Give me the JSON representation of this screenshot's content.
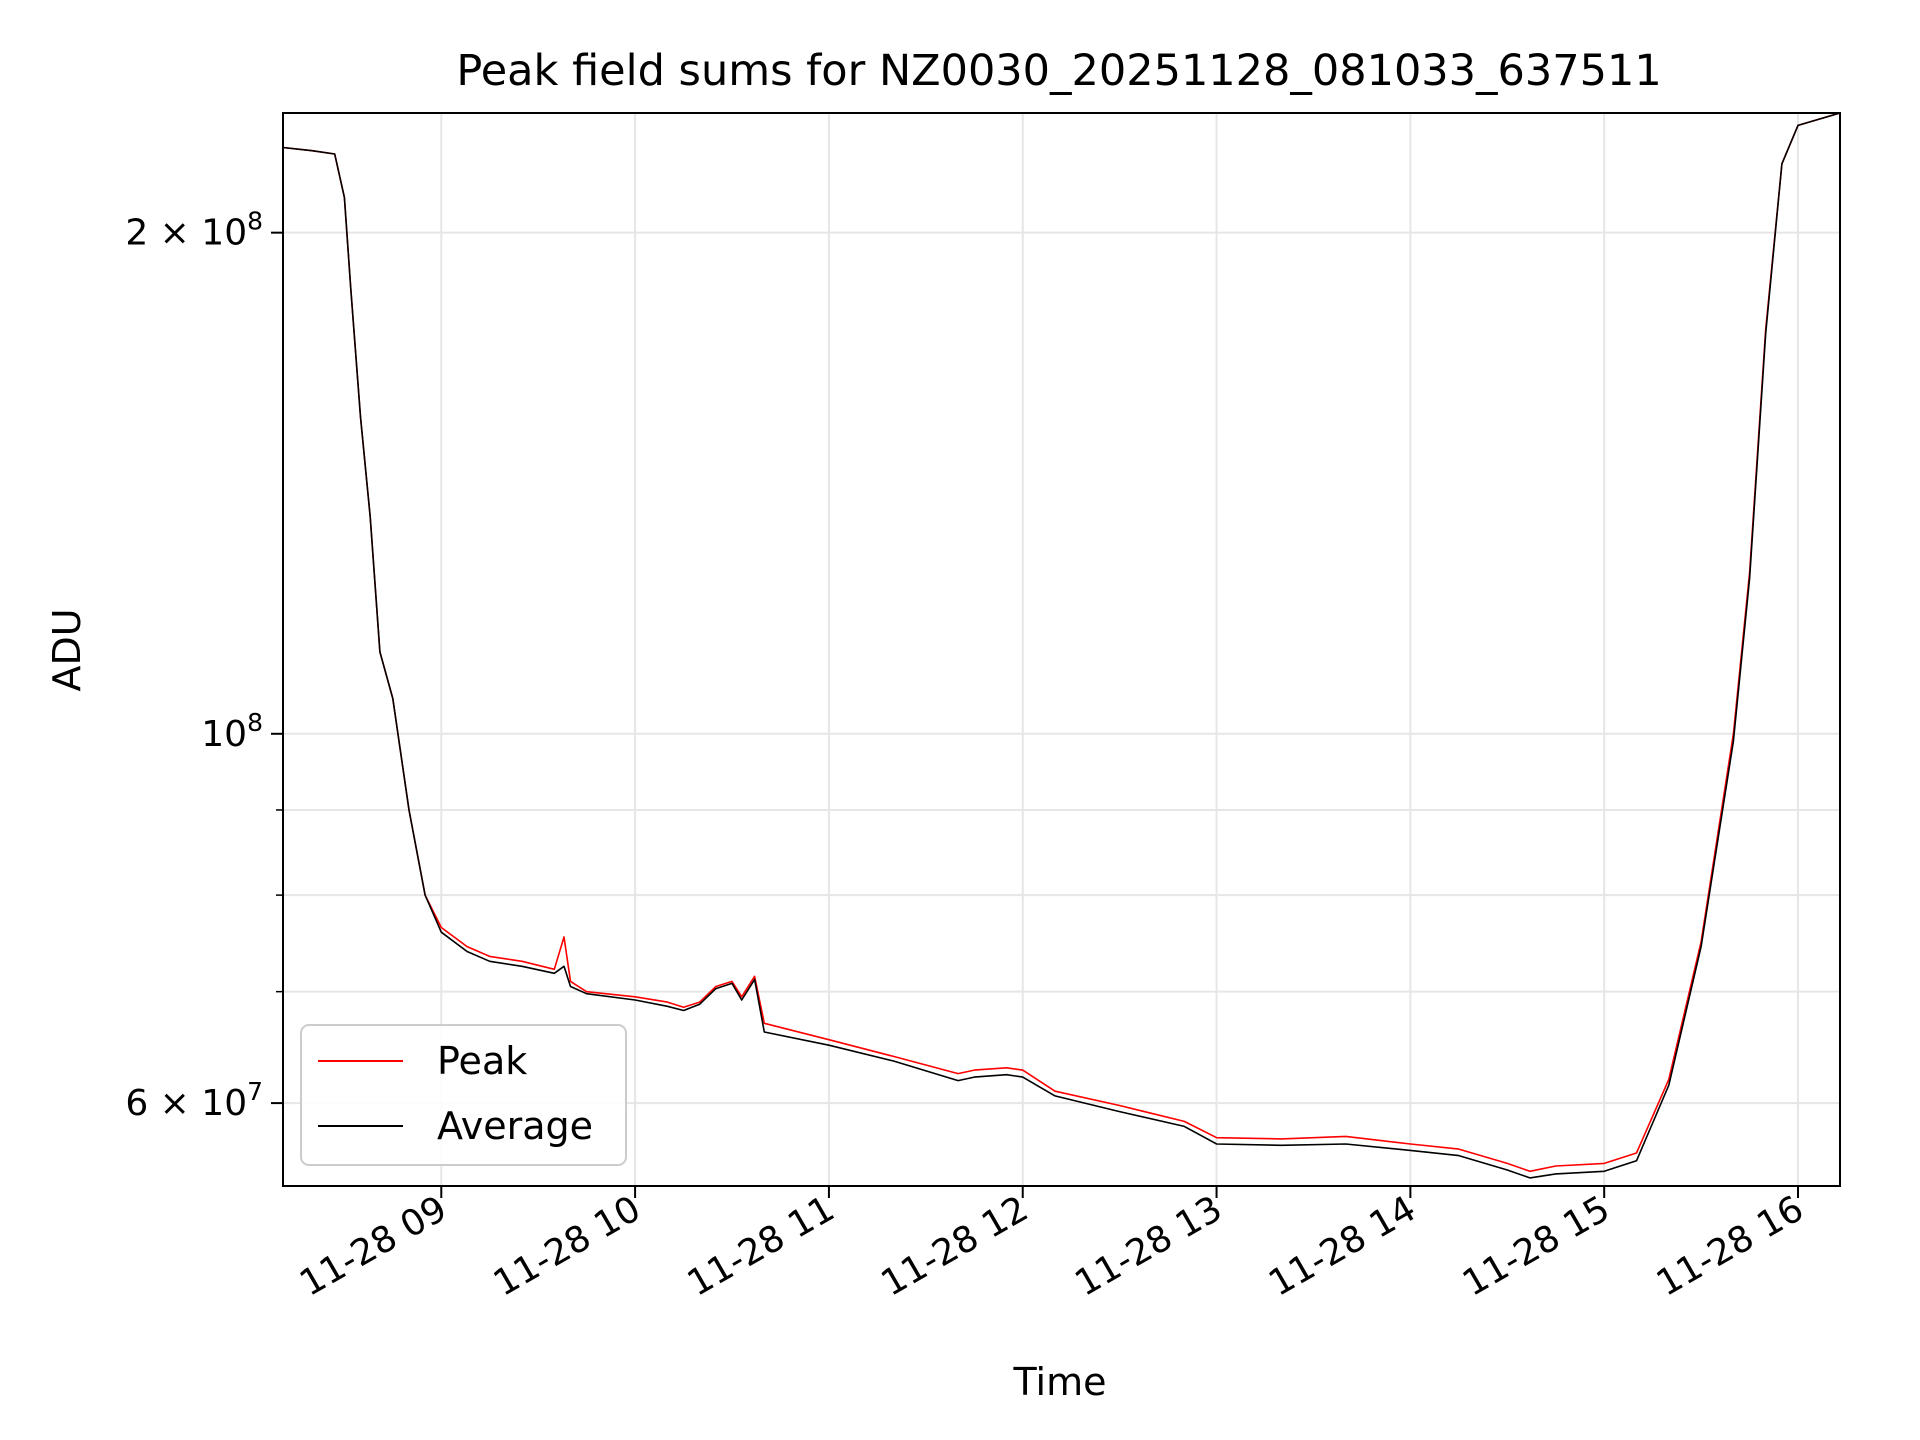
{
  "chart_data": {
    "type": "line",
    "title": "Peak field sums for NZ0030_20251128_081033_637511",
    "xlabel": "Time",
    "ylabel": "ADU",
    "yscale": "log",
    "grid": true,
    "legend_position": "lower-left",
    "xlim": [
      "2025-11-28 08:11",
      "2025-11-28 16:13"
    ],
    "ylim": [
      53500000,
      236000000
    ],
    "x_ticks": [
      {
        "value": "2025-11-28 09:00",
        "label": "11-28 09"
      },
      {
        "value": "2025-11-28 10:00",
        "label": "11-28 10"
      },
      {
        "value": "2025-11-28 11:00",
        "label": "11-28 11"
      },
      {
        "value": "2025-11-28 12:00",
        "label": "11-28 12"
      },
      {
        "value": "2025-11-28 13:00",
        "label": "11-28 13"
      },
      {
        "value": "2025-11-28 14:00",
        "label": "11-28 14"
      },
      {
        "value": "2025-11-28 15:00",
        "label": "11-28 15"
      },
      {
        "value": "2025-11-28 16:00",
        "label": "11-28 16"
      }
    ],
    "y_major_ticks": [
      {
        "value": 60000000,
        "mantissa": "6",
        "exponent": "7"
      },
      {
        "value": 100000000,
        "mantissa": "",
        "exponent": "8"
      },
      {
        "value": 200000000,
        "mantissa": "2",
        "exponent": "8"
      }
    ],
    "y_minor_ticks": [
      70000000,
      80000000,
      90000000
    ],
    "tick_mult_symbol": "×",
    "tick_base": "10",
    "series": [
      {
        "name": "Peak",
        "color": "#ff0000",
        "points": [
          [
            "2025-11-28 08:11",
            225000000
          ],
          [
            "2025-11-28 08:20",
            224000000
          ],
          [
            "2025-11-28 08:27",
            223000000
          ],
          [
            "2025-11-28 08:30",
            210000000
          ],
          [
            "2025-11-28 08:32",
            185000000
          ],
          [
            "2025-11-28 08:35",
            155000000
          ],
          [
            "2025-11-28 08:38",
            135000000
          ],
          [
            "2025-11-28 08:41",
            112000000
          ],
          [
            "2025-11-28 08:45",
            105000000
          ],
          [
            "2025-11-28 08:50",
            90000000
          ],
          [
            "2025-11-28 08:55",
            80000000
          ],
          [
            "2025-11-28 09:00",
            76500000
          ],
          [
            "2025-11-28 09:08",
            74500000
          ],
          [
            "2025-11-28 09:15",
            73500000
          ],
          [
            "2025-11-28 09:25",
            73000000
          ],
          [
            "2025-11-28 09:35",
            72200000
          ],
          [
            "2025-11-28 09:38",
            75500000
          ],
          [
            "2025-11-28 09:40",
            71000000
          ],
          [
            "2025-11-28 09:45",
            70000000
          ],
          [
            "2025-11-28 10:00",
            69500000
          ],
          [
            "2025-11-28 10:10",
            69000000
          ],
          [
            "2025-11-28 10:15",
            68500000
          ],
          [
            "2025-11-28 10:20",
            69000000
          ],
          [
            "2025-11-28 10:25",
            70500000
          ],
          [
            "2025-11-28 10:30",
            71000000
          ],
          [
            "2025-11-28 10:33",
            69500000
          ],
          [
            "2025-11-28 10:37",
            71500000
          ],
          [
            "2025-11-28 10:40",
            67000000
          ],
          [
            "2025-11-28 11:00",
            65500000
          ],
          [
            "2025-11-28 11:20",
            64000000
          ],
          [
            "2025-11-28 11:40",
            62500000
          ],
          [
            "2025-11-28 11:45",
            62800000
          ],
          [
            "2025-11-28 11:55",
            63000000
          ],
          [
            "2025-11-28 12:00",
            62800000
          ],
          [
            "2025-11-28 12:10",
            61000000
          ],
          [
            "2025-11-28 12:30",
            59800000
          ],
          [
            "2025-11-28 12:50",
            58500000
          ],
          [
            "2025-11-28 13:00",
            57200000
          ],
          [
            "2025-11-28 13:20",
            57100000
          ],
          [
            "2025-11-28 13:40",
            57300000
          ],
          [
            "2025-11-28 14:00",
            56700000
          ],
          [
            "2025-11-28 14:15",
            56300000
          ],
          [
            "2025-11-28 14:30",
            55200000
          ],
          [
            "2025-11-28 14:37",
            54600000
          ],
          [
            "2025-11-28 14:45",
            55000000
          ],
          [
            "2025-11-28 15:00",
            55200000
          ],
          [
            "2025-11-28 15:10",
            56000000
          ],
          [
            "2025-11-28 15:20",
            62000000
          ],
          [
            "2025-11-28 15:30",
            75000000
          ],
          [
            "2025-11-28 15:40",
            100000000
          ],
          [
            "2025-11-28 15:45",
            125000000
          ],
          [
            "2025-11-28 15:50",
            175000000
          ],
          [
            "2025-11-28 15:55",
            220000000
          ],
          [
            "2025-11-28 16:00",
            232000000
          ],
          [
            "2025-11-28 16:13",
            236000000
          ]
        ]
      },
      {
        "name": "Average",
        "color": "#000000",
        "points": [
          [
            "2025-11-28 08:11",
            225000000
          ],
          [
            "2025-11-28 08:20",
            224000000
          ],
          [
            "2025-11-28 08:27",
            223000000
          ],
          [
            "2025-11-28 08:30",
            210000000
          ],
          [
            "2025-11-28 08:32",
            185000000
          ],
          [
            "2025-11-28 08:35",
            155000000
          ],
          [
            "2025-11-28 08:38",
            135000000
          ],
          [
            "2025-11-28 08:41",
            112000000
          ],
          [
            "2025-11-28 08:45",
            105000000
          ],
          [
            "2025-11-28 08:50",
            90000000
          ],
          [
            "2025-11-28 08:55",
            80000000
          ],
          [
            "2025-11-28 09:00",
            76000000
          ],
          [
            "2025-11-28 09:08",
            74000000
          ],
          [
            "2025-11-28 09:15",
            73000000
          ],
          [
            "2025-11-28 09:25",
            72500000
          ],
          [
            "2025-11-28 09:35",
            71800000
          ],
          [
            "2025-11-28 09:38",
            72500000
          ],
          [
            "2025-11-28 09:40",
            70500000
          ],
          [
            "2025-11-28 09:45",
            69800000
          ],
          [
            "2025-11-28 10:00",
            69200000
          ],
          [
            "2025-11-28 10:10",
            68600000
          ],
          [
            "2025-11-28 10:15",
            68200000
          ],
          [
            "2025-11-28 10:20",
            68800000
          ],
          [
            "2025-11-28 10:25",
            70300000
          ],
          [
            "2025-11-28 10:30",
            70800000
          ],
          [
            "2025-11-28 10:33",
            69200000
          ],
          [
            "2025-11-28 10:37",
            71200000
          ],
          [
            "2025-11-28 10:40",
            66200000
          ],
          [
            "2025-11-28 11:00",
            65000000
          ],
          [
            "2025-11-28 11:20",
            63600000
          ],
          [
            "2025-11-28 11:40",
            61900000
          ],
          [
            "2025-11-28 11:45",
            62200000
          ],
          [
            "2025-11-28 11:55",
            62400000
          ],
          [
            "2025-11-28 12:00",
            62200000
          ],
          [
            "2025-11-28 12:10",
            60600000
          ],
          [
            "2025-11-28 12:30",
            59300000
          ],
          [
            "2025-11-28 12:50",
            58100000
          ],
          [
            "2025-11-28 13:00",
            56700000
          ],
          [
            "2025-11-28 13:20",
            56600000
          ],
          [
            "2025-11-28 13:40",
            56700000
          ],
          [
            "2025-11-28 14:00",
            56200000
          ],
          [
            "2025-11-28 14:15",
            55800000
          ],
          [
            "2025-11-28 14:30",
            54700000
          ],
          [
            "2025-11-28 14:37",
            54100000
          ],
          [
            "2025-11-28 14:45",
            54400000
          ],
          [
            "2025-11-28 15:00",
            54600000
          ],
          [
            "2025-11-28 15:10",
            55400000
          ],
          [
            "2025-11-28 15:20",
            61500000
          ],
          [
            "2025-11-28 15:30",
            74500000
          ],
          [
            "2025-11-28 15:40",
            99000000
          ],
          [
            "2025-11-28 15:45",
            124000000
          ],
          [
            "2025-11-28 15:50",
            174000000
          ],
          [
            "2025-11-28 15:55",
            220000000
          ],
          [
            "2025-11-28 16:00",
            232000000
          ],
          [
            "2025-11-28 16:13",
            236000000
          ]
        ]
      }
    ]
  }
}
